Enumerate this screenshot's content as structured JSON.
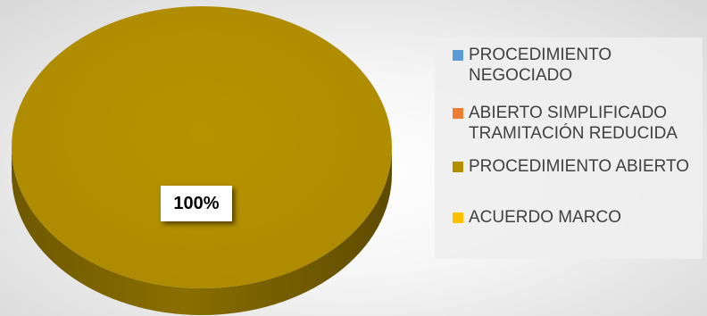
{
  "chart_data": {
    "type": "pie",
    "style": "3d",
    "title": "",
    "categories": [
      "PROCEDIMIENTO NEGOCIADO",
      "ABIERTO SIMPLIFICADO TRAMITACIÓN REDUCIDA",
      "PROCEDIMIENTO ABIERTO",
      "ACUERDO MARCO"
    ],
    "values": [
      0,
      0,
      100,
      0
    ],
    "colors": [
      "#5b9bd5",
      "#ed7d31",
      "#b38f00",
      "#ffc000"
    ],
    "data_labels": [
      "",
      "",
      "100%",
      ""
    ],
    "legend_position": "right"
  }
}
